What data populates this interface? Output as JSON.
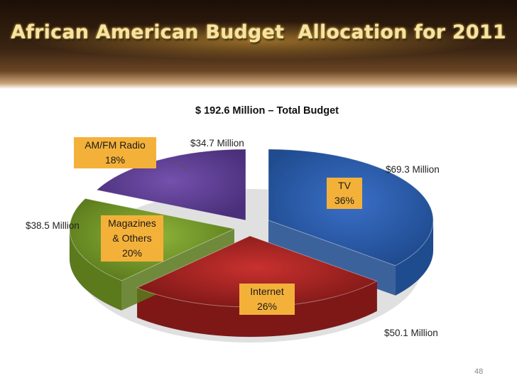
{
  "slide": {
    "title": "African American Budget  Allocation for 2011",
    "subtitle": "$ 192.6 Million – Total Budget",
    "page_number": "48"
  },
  "chart_data": {
    "type": "pie",
    "title": "$ 192.6 Million – Total Budget",
    "total": "$ 192.6 Million",
    "slices": [
      {
        "name": "TV",
        "line1": "TV",
        "line2": "36%",
        "percent": 36,
        "amount": "$69.3 Million",
        "color": "#3a6fc7",
        "dark": "#1f4b8f"
      },
      {
        "name": "Internet",
        "line1": "Internet",
        "line2": "26%",
        "percent": 26,
        "amount": "$50.1 Million",
        "color": "#c8312f",
        "dark": "#7e1816"
      },
      {
        "name": "Magazines & Others",
        "line1": "Magazines",
        "line1b": "& Others",
        "line2": "20%",
        "percent": 20,
        "amount": "$38.5 Million",
        "color": "#8fb53a",
        "dark": "#5a7a1c"
      },
      {
        "name": "AM/FM Radio",
        "line1": "AM/FM Radio",
        "line2": "18%",
        "percent": 18,
        "amount": "$34.7 Million",
        "color": "#7451ad",
        "dark": "#4a2f7a"
      }
    ],
    "label_box_colors": {
      "radio": "#f4b13a",
      "tv": "#f4b13a",
      "magazines": "#f4b13a",
      "internet": "#f4b13a"
    }
  }
}
